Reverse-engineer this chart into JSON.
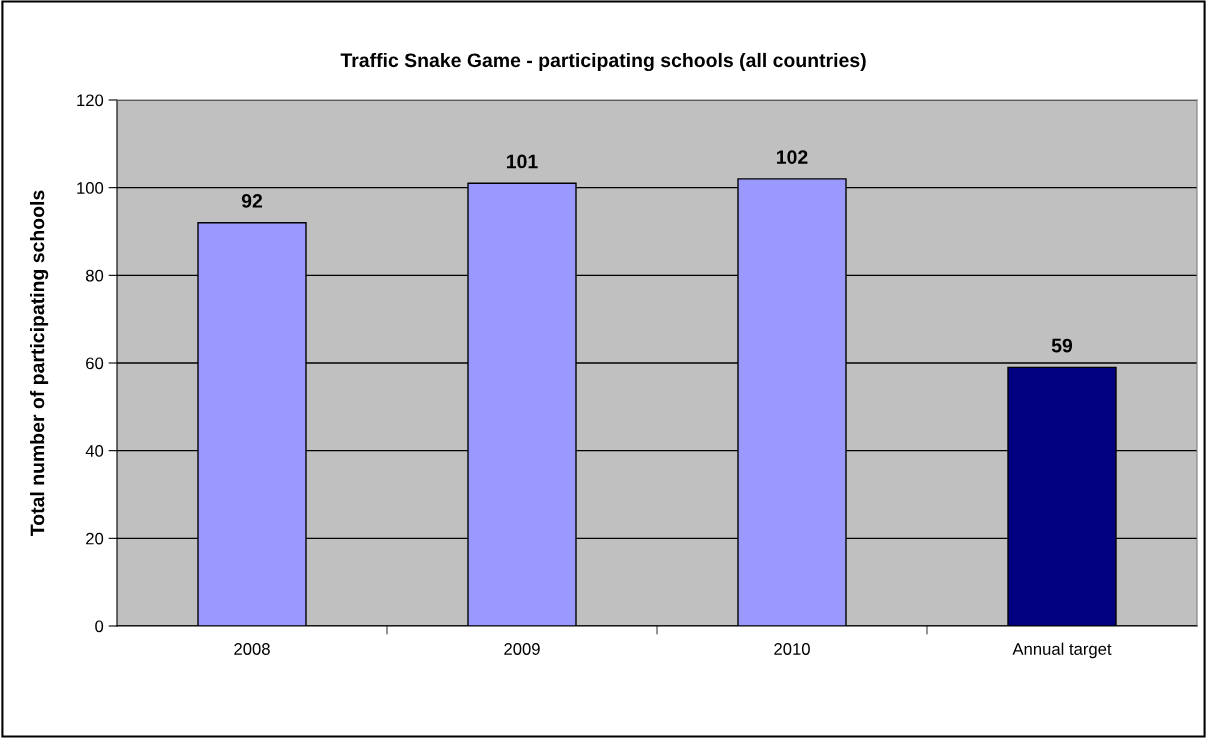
{
  "chart_data": {
    "type": "bar",
    "title": "Traffic Snake Game - participating schools (all countries)",
    "ylabel": "Total number of participating schools",
    "categories": [
      "2008",
      "2009",
      "2010",
      "Annual target"
    ],
    "values": [
      92,
      101,
      102,
      59
    ],
    "colors": [
      "#9999ff",
      "#9999ff",
      "#9999ff",
      "#000080"
    ],
    "ylim": [
      0,
      120
    ],
    "yticks": [
      0,
      20,
      40,
      60,
      80,
      100,
      120
    ],
    "grid": "y",
    "data_labels": true,
    "legend": false
  }
}
